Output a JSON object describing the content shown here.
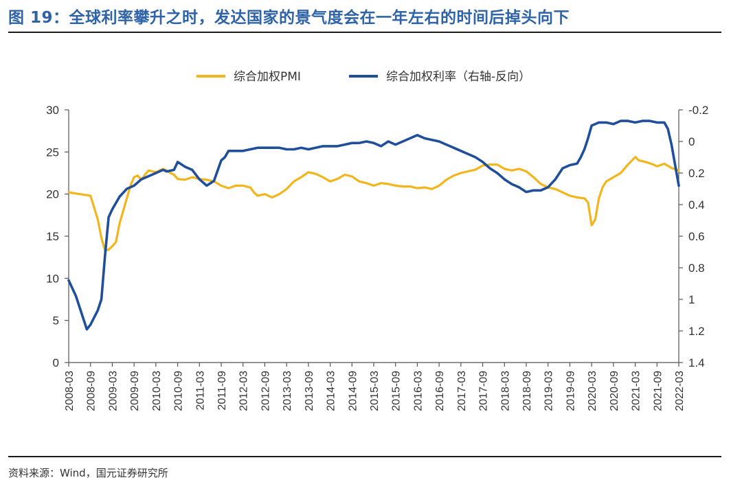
{
  "figure": {
    "title": "图 19：全球利率攀升之时，发达国家的景气度会在一年左右的时间后掉头向下",
    "source": "资料来源：Wind，国元证券研究所"
  },
  "colors": {
    "pmi": "#f2b51c",
    "rate": "#1f4e9a",
    "title": "#2f63a8"
  },
  "chart_data": {
    "type": "line",
    "title": "",
    "x_ticks": [
      "2008-03",
      "2008-09",
      "2009-03",
      "2009-09",
      "2010-03",
      "2010-09",
      "2011-03",
      "2011-09",
      "2012-03",
      "2012-09",
      "2013-03",
      "2013-09",
      "2014-03",
      "2014-09",
      "2015-03",
      "2015-09",
      "2016-03",
      "2016-09",
      "2017-03",
      "2017-09",
      "2018-03",
      "2018-09",
      "2019-03",
      "2019-09",
      "2020-03",
      "2020-09",
      "2021-03",
      "2021-09",
      "2022-03"
    ],
    "left_axis": {
      "ylim": [
        0,
        30
      ],
      "ticks": [
        "0",
        "5",
        "10",
        "15",
        "20",
        "25",
        "30"
      ]
    },
    "right_axis": {
      "ylim": [
        -0.2,
        1.4
      ],
      "reversed": true,
      "ticks": [
        "-0.2",
        "0",
        "0.2",
        "0.4",
        "0.6",
        "0.8",
        "1",
        "1.2",
        "1.4"
      ]
    },
    "grid": false,
    "legend_position": "top-center",
    "series": [
      {
        "name": "综合加权PMI",
        "axis": "left",
        "points": [
          [
            "2008-03",
            20.2
          ],
          [
            "2008-06",
            20.0
          ],
          [
            "2008-09",
            19.8
          ],
          [
            "2008-11",
            17.0
          ],
          [
            "2008-12",
            14.8
          ],
          [
            "2009-01",
            13.3
          ],
          [
            "2009-02",
            13.4
          ],
          [
            "2009-03",
            13.8
          ],
          [
            "2009-04",
            14.3
          ],
          [
            "2009-05",
            16.5
          ],
          [
            "2009-06",
            18.0
          ],
          [
            "2009-07",
            19.5
          ],
          [
            "2009-08",
            21.0
          ],
          [
            "2009-09",
            22.0
          ],
          [
            "2009-10",
            22.2
          ],
          [
            "2009-11",
            21.7
          ],
          [
            "2009-12",
            22.3
          ],
          [
            "2010-01",
            22.8
          ],
          [
            "2010-02",
            22.7
          ],
          [
            "2010-03",
            22.6
          ],
          [
            "2010-05",
            23.0
          ],
          [
            "2010-06",
            22.8
          ],
          [
            "2010-07",
            22.5
          ],
          [
            "2010-08",
            22.3
          ],
          [
            "2010-09",
            21.8
          ],
          [
            "2010-11",
            21.7
          ],
          [
            "2011-01",
            22.0
          ],
          [
            "2011-03",
            21.8
          ],
          [
            "2011-05",
            21.7
          ],
          [
            "2011-07",
            21.5
          ],
          [
            "2011-09",
            21.0
          ],
          [
            "2011-11",
            20.7
          ],
          [
            "2012-01",
            21.0
          ],
          [
            "2012-03",
            21.0
          ],
          [
            "2012-05",
            20.8
          ],
          [
            "2012-06",
            20.2
          ],
          [
            "2012-07",
            19.8
          ],
          [
            "2012-09",
            20.0
          ],
          [
            "2012-11",
            19.6
          ],
          [
            "2013-01",
            20.0
          ],
          [
            "2013-03",
            20.6
          ],
          [
            "2013-05",
            21.5
          ],
          [
            "2013-07",
            22.0
          ],
          [
            "2013-09",
            22.6
          ],
          [
            "2013-11",
            22.4
          ],
          [
            "2014-01",
            22.0
          ],
          [
            "2014-03",
            21.5
          ],
          [
            "2014-05",
            21.8
          ],
          [
            "2014-07",
            22.3
          ],
          [
            "2014-09",
            22.1
          ],
          [
            "2014-11",
            21.5
          ],
          [
            "2015-01",
            21.3
          ],
          [
            "2015-03",
            21.0
          ],
          [
            "2015-05",
            21.3
          ],
          [
            "2015-07",
            21.2
          ],
          [
            "2015-09",
            21.0
          ],
          [
            "2015-11",
            20.9
          ],
          [
            "2016-01",
            20.9
          ],
          [
            "2016-03",
            20.7
          ],
          [
            "2016-05",
            20.8
          ],
          [
            "2016-07",
            20.6
          ],
          [
            "2016-09",
            21.0
          ],
          [
            "2016-11",
            21.7
          ],
          [
            "2017-01",
            22.2
          ],
          [
            "2017-03",
            22.5
          ],
          [
            "2017-05",
            22.7
          ],
          [
            "2017-07",
            22.9
          ],
          [
            "2017-09",
            23.4
          ],
          [
            "2017-11",
            23.5
          ],
          [
            "2018-01",
            23.5
          ],
          [
            "2018-03",
            23.0
          ],
          [
            "2018-05",
            22.8
          ],
          [
            "2018-07",
            23.0
          ],
          [
            "2018-09",
            22.7
          ],
          [
            "2018-11",
            22.0
          ],
          [
            "2019-01",
            21.2
          ],
          [
            "2019-03",
            20.8
          ],
          [
            "2019-05",
            20.6
          ],
          [
            "2019-07",
            20.2
          ],
          [
            "2019-09",
            19.8
          ],
          [
            "2019-11",
            19.6
          ],
          [
            "2020-01",
            19.5
          ],
          [
            "2020-02",
            19.0
          ],
          [
            "2020-03",
            16.3
          ],
          [
            "2020-04",
            17.0
          ],
          [
            "2020-05",
            19.5
          ],
          [
            "2020-06",
            20.8
          ],
          [
            "2020-07",
            21.5
          ],
          [
            "2020-09",
            22.0
          ],
          [
            "2020-11",
            22.5
          ],
          [
            "2021-01",
            23.5
          ],
          [
            "2021-03",
            24.4
          ],
          [
            "2021-04",
            24.0
          ],
          [
            "2021-06",
            23.8
          ],
          [
            "2021-08",
            23.5
          ],
          [
            "2021-09",
            23.3
          ],
          [
            "2021-11",
            23.6
          ],
          [
            "2022-01",
            23.1
          ],
          [
            "2022-03",
            22.8
          ]
        ]
      },
      {
        "name": "综合加权利率（右轴-反向）",
        "axis": "right",
        "points": [
          [
            "2008-03",
            0.88
          ],
          [
            "2008-05",
            0.98
          ],
          [
            "2008-07",
            1.12
          ],
          [
            "2008-08",
            1.19
          ],
          [
            "2008-09",
            1.16
          ],
          [
            "2008-11",
            1.07
          ],
          [
            "2008-12",
            1.0
          ],
          [
            "2009-01",
            0.72
          ],
          [
            "2009-02",
            0.48
          ],
          [
            "2009-03",
            0.43
          ],
          [
            "2009-05",
            0.35
          ],
          [
            "2009-07",
            0.3
          ],
          [
            "2009-09",
            0.28
          ],
          [
            "2009-11",
            0.24
          ],
          [
            "2010-01",
            0.22
          ],
          [
            "2010-03",
            0.2
          ],
          [
            "2010-05",
            0.18
          ],
          [
            "2010-06",
            0.19
          ],
          [
            "2010-08",
            0.18
          ],
          [
            "2010-09",
            0.13
          ],
          [
            "2010-11",
            0.16
          ],
          [
            "2011-01",
            0.18
          ],
          [
            "2011-03",
            0.24
          ],
          [
            "2011-05",
            0.28
          ],
          [
            "2011-07",
            0.25
          ],
          [
            "2011-09",
            0.12
          ],
          [
            "2011-10",
            0.1
          ],
          [
            "2011-11",
            0.06
          ],
          [
            "2012-01",
            0.06
          ],
          [
            "2012-03",
            0.06
          ],
          [
            "2012-05",
            0.05
          ],
          [
            "2012-07",
            0.04
          ],
          [
            "2012-09",
            0.04
          ],
          [
            "2012-11",
            0.04
          ],
          [
            "2013-01",
            0.04
          ],
          [
            "2013-03",
            0.05
          ],
          [
            "2013-05",
            0.05
          ],
          [
            "2013-07",
            0.04
          ],
          [
            "2013-09",
            0.05
          ],
          [
            "2013-11",
            0.04
          ],
          [
            "2014-01",
            0.03
          ],
          [
            "2014-03",
            0.03
          ],
          [
            "2014-05",
            0.03
          ],
          [
            "2014-07",
            0.02
          ],
          [
            "2014-09",
            0.01
          ],
          [
            "2014-11",
            0.01
          ],
          [
            "2015-01",
            0.0
          ],
          [
            "2015-03",
            0.01
          ],
          [
            "2015-05",
            0.03
          ],
          [
            "2015-07",
            0.0
          ],
          [
            "2015-09",
            0.02
          ],
          [
            "2015-11",
            0.0
          ],
          [
            "2016-01",
            -0.02
          ],
          [
            "2016-03",
            -0.04
          ],
          [
            "2016-05",
            -0.02
          ],
          [
            "2016-07",
            -0.01
          ],
          [
            "2016-09",
            0.0
          ],
          [
            "2016-11",
            0.02
          ],
          [
            "2017-01",
            0.04
          ],
          [
            "2017-03",
            0.06
          ],
          [
            "2017-05",
            0.08
          ],
          [
            "2017-07",
            0.1
          ],
          [
            "2017-09",
            0.13
          ],
          [
            "2017-11",
            0.17
          ],
          [
            "2018-01",
            0.2
          ],
          [
            "2018-03",
            0.24
          ],
          [
            "2018-05",
            0.27
          ],
          [
            "2018-07",
            0.29
          ],
          [
            "2018-09",
            0.32
          ],
          [
            "2018-11",
            0.31
          ],
          [
            "2019-01",
            0.31
          ],
          [
            "2019-03",
            0.29
          ],
          [
            "2019-05",
            0.24
          ],
          [
            "2019-07",
            0.17
          ],
          [
            "2019-09",
            0.15
          ],
          [
            "2019-11",
            0.14
          ],
          [
            "2019-12",
            0.1
          ],
          [
            "2020-01",
            0.05
          ],
          [
            "2020-02",
            -0.02
          ],
          [
            "2020-03",
            -0.1
          ],
          [
            "2020-05",
            -0.12
          ],
          [
            "2020-07",
            -0.12
          ],
          [
            "2020-09",
            -0.11
          ],
          [
            "2020-11",
            -0.13
          ],
          [
            "2021-01",
            -0.13
          ],
          [
            "2021-03",
            -0.12
          ],
          [
            "2021-05",
            -0.13
          ],
          [
            "2021-07",
            -0.13
          ],
          [
            "2021-09",
            -0.12
          ],
          [
            "2021-11",
            -0.12
          ],
          [
            "2021-12",
            -0.08
          ],
          [
            "2022-01",
            0.02
          ],
          [
            "2022-02",
            0.15
          ],
          [
            "2022-03",
            0.28
          ]
        ]
      }
    ]
  }
}
